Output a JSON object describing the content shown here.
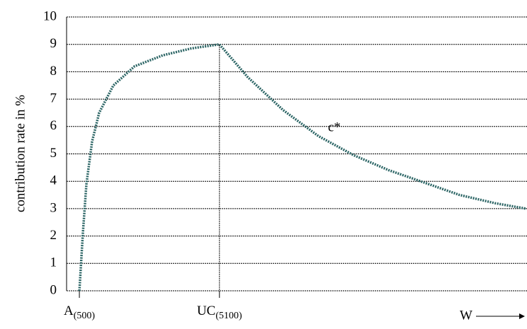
{
  "chart_data": {
    "type": "line",
    "ylabel": "contribution rate in %",
    "x": [
      500,
      616,
      732,
      918,
      1150,
      1615,
      2312,
      3240,
      4170,
      5100,
      6030,
      7190,
      8350,
      9510,
      10670,
      11830,
      12990,
      14150,
      15170
    ],
    "series": [
      {
        "name": "c*",
        "color": "#2a6464",
        "values": [
          0,
          2.1,
          3.9,
          5.45,
          6.5,
          7.5,
          8.2,
          8.6,
          8.85,
          9.0,
          7.8,
          6.6,
          5.65,
          4.95,
          4.4,
          3.95,
          3.5,
          3.2,
          3.0
        ]
      }
    ],
    "xlim": [
      80,
      15200
    ],
    "xticks": [
      {
        "value": 500,
        "label": "A",
        "sub": "(500)"
      },
      {
        "value": 5100,
        "label": "UC",
        "sub": "(5100)"
      }
    ],
    "x_end_label": "W",
    "ylim": [
      0,
      10
    ],
    "yticks": [
      0,
      1,
      2,
      3,
      4,
      5,
      6,
      7,
      8,
      9,
      10
    ],
    "grid": true
  }
}
